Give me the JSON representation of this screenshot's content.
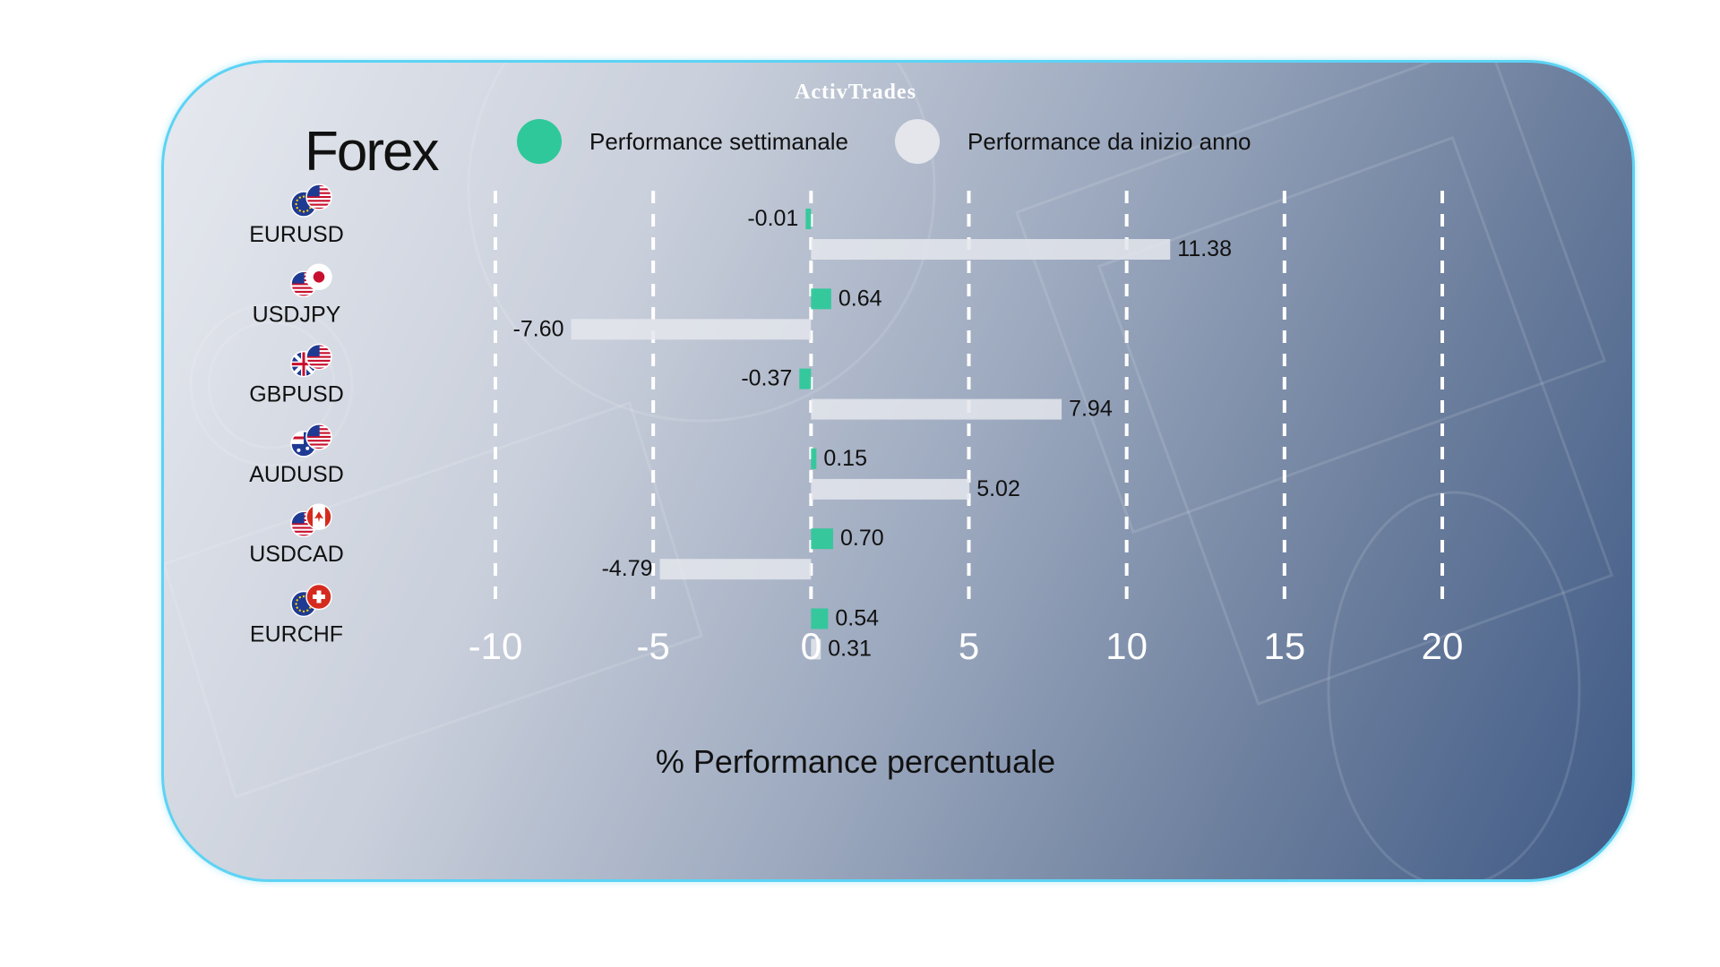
{
  "brand": {
    "name": "ActivTrades"
  },
  "chart_data": {
    "type": "bar",
    "orientation": "horizontal",
    "title": "Forex",
    "xlabel": "% Performance percentuale",
    "xlim": [
      -10,
      20
    ],
    "xticks": [
      "-10",
      "-5",
      "0",
      "5",
      "10",
      "15",
      "20"
    ],
    "grid": "vertical dashed",
    "legend_placement": "top",
    "categories": [
      "EURUSD",
      "USDJPY",
      "GBPUSD",
      "AUDUSD",
      "USDCAD",
      "EURCHF"
    ],
    "category_flags": [
      [
        "eu-flag-icon",
        "us-flag-icon"
      ],
      [
        "us-flag-icon",
        "jp-flag-icon"
      ],
      [
        "gb-flag-icon",
        "us-flag-icon"
      ],
      [
        "au-flag-icon",
        "us-flag-icon"
      ],
      [
        "us-flag-icon",
        "ca-flag-icon"
      ],
      [
        "eu-flag-icon",
        "ch-flag-icon"
      ]
    ],
    "series": [
      {
        "name": "Performance settimanale",
        "color": "#2fc89a",
        "values": [
          -0.01,
          0.64,
          -0.37,
          0.15,
          0.7,
          0.54
        ],
        "labels": [
          "-0.01",
          "0.64",
          "-0.37",
          "0.15",
          "0.70",
          "0.54"
        ]
      },
      {
        "name": "Performance da inizio anno",
        "color": "#e4e6ec",
        "values": [
          11.38,
          -7.6,
          7.94,
          5.02,
          -4.79,
          0.31
        ],
        "labels": [
          "11.38",
          "-7.60",
          "7.94",
          "5.02",
          "-4.79",
          "0.31"
        ]
      }
    ]
  }
}
